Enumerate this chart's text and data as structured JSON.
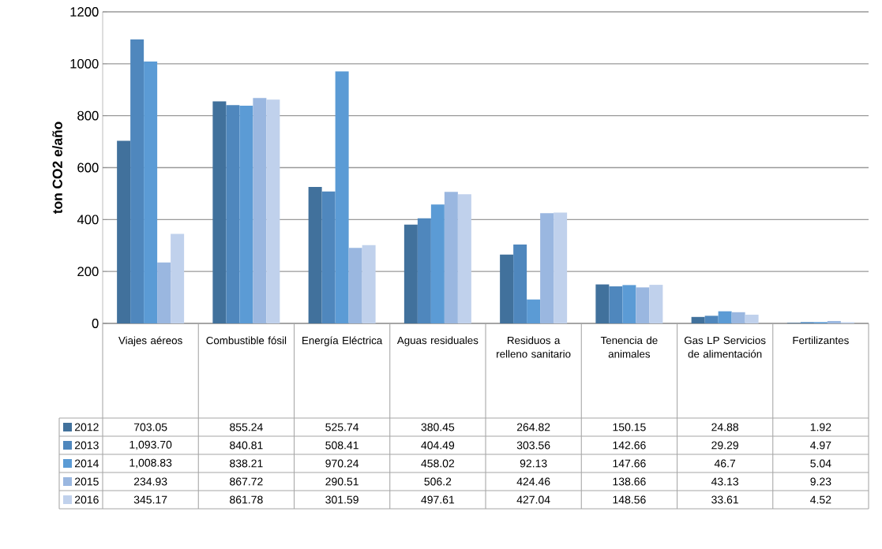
{
  "chart_data": {
    "type": "bar",
    "ylabel": "ton CO2 e/año",
    "categories": [
      "Viajes aéreos",
      "Combustible fósil",
      "Energía Eléctrica",
      "Aguas residuales",
      "Residuos a relleno sanitario",
      "Tenencia de animales",
      "Gas LP Servicios de alimentación",
      "Fertilizantes"
    ],
    "series": [
      {
        "name": "2012",
        "color": "#41719c",
        "values": [
          703.05,
          855.24,
          525.74,
          380.45,
          264.82,
          150.15,
          24.88,
          1.92
        ],
        "value_labels": [
          "703.05",
          "855.24",
          "525.74",
          "380.45",
          "264.82",
          "150.15",
          "24.88",
          "1.92"
        ]
      },
      {
        "name": "2013",
        "color": "#4f87bd",
        "values": [
          1093.7,
          840.81,
          508.41,
          404.49,
          303.56,
          142.66,
          29.29,
          4.97
        ],
        "value_labels": [
          "1,093.70",
          "840.81",
          "508.41",
          "404.49",
          "303.56",
          "142.66",
          "29.29",
          "4.97"
        ]
      },
      {
        "name": "2014",
        "color": "#5b9bd5",
        "values": [
          1008.83,
          838.21,
          970.24,
          458.02,
          92.13,
          147.66,
          46.7,
          5.04
        ],
        "value_labels": [
          "1,008.83",
          "838.21",
          "970.24",
          "458.02",
          "92.13",
          "147.66",
          "46.7",
          "5.04"
        ]
      },
      {
        "name": "2015",
        "color": "#9ab7e0",
        "values": [
          234.93,
          867.72,
          290.51,
          506.2,
          424.46,
          138.66,
          43.13,
          9.23
        ],
        "value_labels": [
          "234.93",
          "867.72",
          "290.51",
          "506.2",
          "424.46",
          "138.66",
          "43.13",
          "9.23"
        ]
      },
      {
        "name": "2016",
        "color": "#c0d1ec",
        "values": [
          345.17,
          861.78,
          301.59,
          497.61,
          427.04,
          148.56,
          33.61,
          4.52
        ],
        "value_labels": [
          "345.17",
          "861.78",
          "301.59",
          "497.61",
          "427.04",
          "148.56",
          "33.61",
          "4.52"
        ]
      }
    ],
    "ylim": [
      0,
      1200
    ],
    "yticks": [
      0,
      200,
      400,
      600,
      800,
      1000,
      1200
    ],
    "grid": "y",
    "legend": "bottom"
  }
}
